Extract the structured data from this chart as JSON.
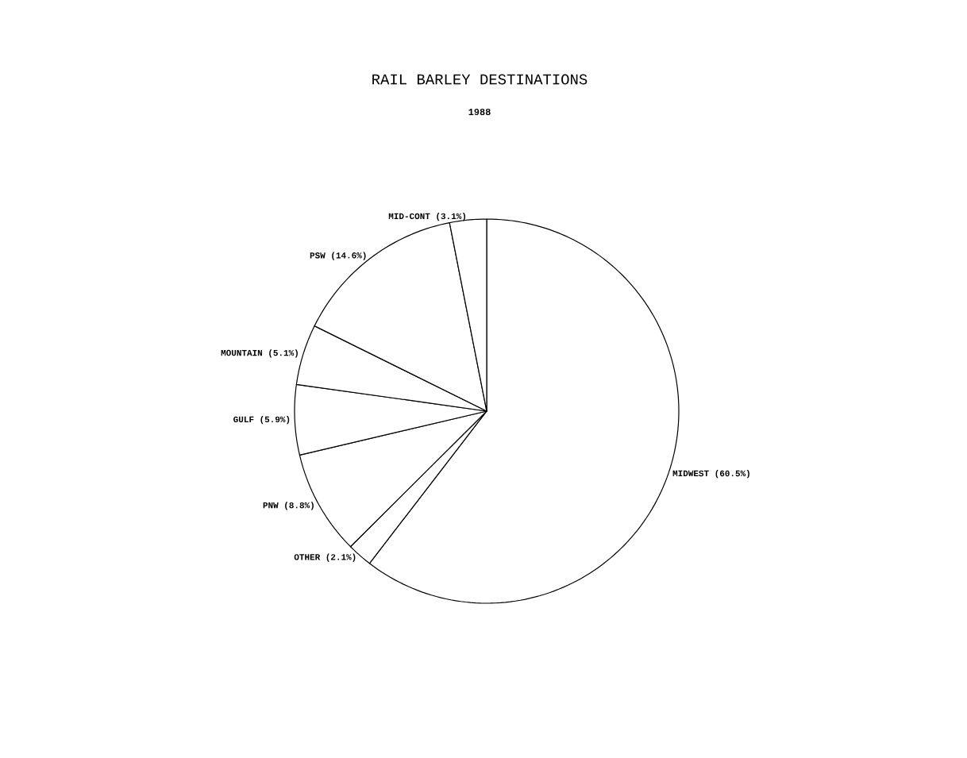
{
  "chart_data": {
    "type": "pie",
    "title": "RAIL BARLEY DESTINATIONS",
    "subtitle": "1988",
    "categories": [
      "MIDWEST (60.5%)",
      "OTHER (2.1%)",
      "PNW (8.8%)",
      "GULF (5.9%)",
      "MOUNTAIN (5.1%)",
      "PSW (14.6%)",
      "MID-CONT (3.1%)"
    ],
    "values": [
      60.5,
      2.1,
      8.8,
      5.9,
      5.1,
      14.6,
      3.1
    ],
    "colors": [
      "#ffffff",
      "#ffffff",
      "#ffffff",
      "#ffffff",
      "#ffffff",
      "#ffffff",
      "#ffffff"
    ],
    "legend": false
  }
}
